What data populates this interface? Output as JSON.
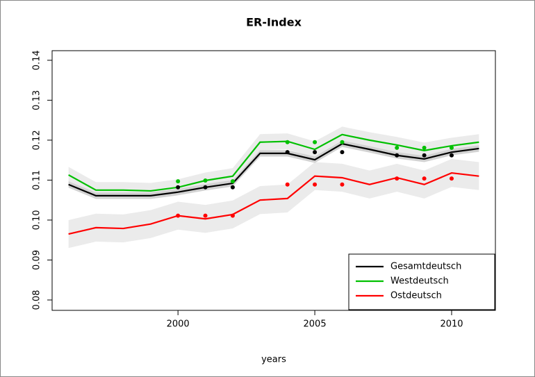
{
  "chart_data": {
    "type": "line",
    "title": "ER-Index",
    "xlabel": "years",
    "x": [
      1996,
      1997,
      1998,
      1999,
      2000,
      2001,
      2002,
      2003,
      2004,
      2005,
      2006,
      2007,
      2008,
      2009,
      2010,
      2011
    ],
    "xlim": [
      1995.4,
      2011.6
    ],
    "xticks": [
      2000,
      2005,
      2010
    ],
    "ylim": [
      0.0774,
      0.1424
    ],
    "yticks": [
      0.08,
      0.09,
      {
        "value": 0.1,
        "label": "0.10"
      },
      0.11,
      0.12,
      0.13,
      0.14
    ],
    "legend": "bottom-right",
    "series": [
      {
        "name": "Gesamtdeutsch",
        "color": "#000000",
        "band_color": "#d2d2d2",
        "values": [
          0.1089,
          0.1061,
          0.1061,
          0.1061,
          0.107,
          0.1082,
          0.1092,
          0.1167,
          0.1167,
          0.1151,
          0.1191,
          0.1177,
          0.1162,
          0.1153,
          0.117,
          0.1179
        ],
        "lower": [
          0.1081,
          0.1053,
          0.1053,
          0.1053,
          0.1062,
          0.1074,
          0.1084,
          0.1159,
          0.1159,
          0.1143,
          0.1183,
          0.1169,
          0.1154,
          0.1145,
          0.1162,
          0.1171
        ],
        "upper": [
          0.1097,
          0.1069,
          0.1069,
          0.1069,
          0.1078,
          0.109,
          0.11,
          0.1175,
          0.1175,
          0.1159,
          0.1199,
          0.1185,
          0.117,
          0.1161,
          0.1178,
          0.1187
        ],
        "points": [
          null,
          null,
          null,
          null,
          0.1082,
          0.1082,
          0.1082,
          null,
          0.117,
          0.117,
          0.117,
          null,
          0.1162,
          0.1162,
          0.1162,
          null
        ]
      },
      {
        "name": "Westdeutsch",
        "color": "#00c000",
        "band_color": "#ebebeb",
        "values": [
          0.1113,
          0.1075,
          0.1075,
          0.1073,
          0.1082,
          0.1099,
          0.111,
          0.1195,
          0.1197,
          0.1177,
          0.1214,
          0.12,
          0.1188,
          0.1174,
          0.1186,
          0.1195
        ],
        "lower": [
          0.1093,
          0.1055,
          0.1055,
          0.1053,
          0.1062,
          0.1079,
          0.109,
          0.1175,
          0.1177,
          0.1157,
          0.1194,
          0.118,
          0.1168,
          0.1154,
          0.1166,
          0.1175
        ],
        "upper": [
          0.1133,
          0.1095,
          0.1095,
          0.1093,
          0.1102,
          0.1119,
          0.113,
          0.1215,
          0.1217,
          0.1197,
          0.1234,
          0.122,
          0.1208,
          0.1194,
          0.1206,
          0.1215
        ],
        "points": [
          null,
          null,
          null,
          null,
          0.1097,
          0.1099,
          0.1097,
          null,
          0.1195,
          0.1195,
          0.1195,
          null,
          0.1181,
          0.1181,
          0.1181,
          null
        ]
      },
      {
        "name": "Ostdeutsch",
        "color": "#ff0000",
        "band_color": "#ebebeb",
        "values": [
          0.0965,
          0.0981,
          0.0979,
          0.099,
          0.1011,
          0.1003,
          0.1014,
          0.105,
          0.1054,
          0.111,
          0.1106,
          0.1089,
          0.1106,
          0.1089,
          0.1118,
          0.111
        ],
        "lower": [
          0.093,
          0.0946,
          0.0944,
          0.0955,
          0.0976,
          0.0968,
          0.0979,
          0.1015,
          0.1019,
          0.1075,
          0.1071,
          0.1054,
          0.1071,
          0.1054,
          0.1083,
          0.1075
        ],
        "upper": [
          0.1,
          0.1016,
          0.1014,
          0.1025,
          0.1046,
          0.1038,
          0.1049,
          0.1085,
          0.1089,
          0.1145,
          0.1141,
          0.1124,
          0.1141,
          0.1124,
          0.1153,
          0.1145
        ],
        "points": [
          null,
          null,
          null,
          null,
          0.1011,
          0.1011,
          0.1011,
          null,
          0.1089,
          0.1089,
          0.1089,
          null,
          0.1104,
          0.1104,
          0.1104,
          null
        ]
      }
    ]
  }
}
